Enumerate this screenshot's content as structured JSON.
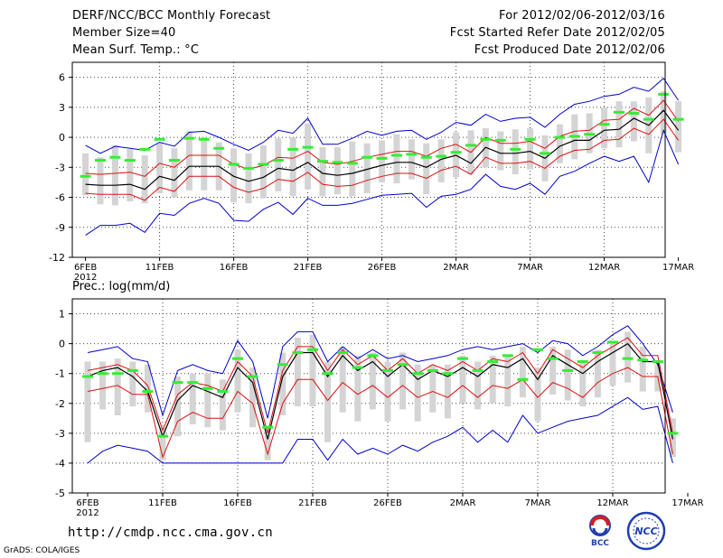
{
  "header": {
    "title": "DERF/NCC/BCC Monthly Forecast",
    "member_size": "Member Size=40",
    "variable": "Mean Surf. Temp.: °C",
    "forecast_period": "For 2012/02/06-2012/03/16",
    "started_date": "Fcst Started Refer Date 2012/02/05",
    "produced_date": "Fcst Produced Date 2012/02/06"
  },
  "footer": {
    "url": "http://cmdp.ncc.cma.gov.cn",
    "credit": "GrADS: COLA/IGES",
    "logo_bcc": "BCC",
    "logo_ncc": "NCC"
  },
  "colors": {
    "mean": "#000000",
    "sd_band": "#dd1111",
    "envelope": "#0000cc",
    "member_range": "#d4d4d4",
    "climatology": "#33ee33"
  },
  "chart_data": [
    {
      "type": "line",
      "title": "Mean Surf. Temp.: °C",
      "xlabel": "",
      "ylabel": "°C",
      "ylim": [
        -12,
        7.5
      ],
      "yticks": [
        6,
        3,
        0,
        -3,
        -6,
        -9,
        -12
      ],
      "x_tick_labels": [
        "6FEB",
        "11FEB",
        "16FEB",
        "21FEB",
        "26FEB",
        "2MAR",
        "7MAR",
        "12MAR",
        "17MAR"
      ],
      "x_tick_days": [
        0,
        5,
        10,
        15,
        20,
        25,
        30,
        35,
        40
      ],
      "year_label": "2012",
      "grid": true,
      "series": [
        {
          "name": "ensemble mean",
          "values": [
            -4.7,
            -4.8,
            -4.8,
            -4.7,
            -5.2,
            -3.9,
            -4.3,
            -2.9,
            -2.9,
            -2.9,
            -3.9,
            -4.4,
            -4.0,
            -3.1,
            -3.3,
            -2.5,
            -3.6,
            -3.8,
            -3.6,
            -3.2,
            -2.8,
            -2.5,
            -2.5,
            -3.0,
            -2.2,
            -1.8,
            -2.6,
            -1.0,
            -1.6,
            -1.6,
            -1.4,
            -2.1,
            -0.9,
            -0.3,
            -0.3,
            0.7,
            0.8,
            1.9,
            1.2,
            2.7,
            0.7
          ]
        },
        {
          "name": "mean + sd",
          "values": [
            -3.6,
            -3.7,
            -3.6,
            -3.5,
            -3.9,
            -2.6,
            -3.0,
            -1.8,
            -1.8,
            -1.8,
            -2.7,
            -3.2,
            -2.8,
            -2.0,
            -2.1,
            -1.4,
            -2.5,
            -2.7,
            -2.4,
            -2.0,
            -1.7,
            -1.4,
            -1.4,
            -1.9,
            -1.1,
            -0.7,
            -1.5,
            0.0,
            -0.6,
            -0.6,
            -0.4,
            -1.1,
            0.1,
            0.6,
            0.7,
            1.7,
            1.8,
            2.9,
            2.2,
            3.7,
            1.6
          ]
        },
        {
          "name": "mean - sd",
          "values": [
            -5.6,
            -5.7,
            -5.7,
            -5.7,
            -6.3,
            -5.0,
            -5.4,
            -3.9,
            -3.9,
            -3.9,
            -5.0,
            -5.5,
            -5.1,
            -4.2,
            -4.4,
            -3.5,
            -4.7,
            -4.9,
            -4.8,
            -4.3,
            -3.9,
            -3.6,
            -3.6,
            -4.1,
            -3.3,
            -2.9,
            -3.7,
            -2.0,
            -2.6,
            -2.6,
            -2.4,
            -3.1,
            -1.9,
            -1.3,
            -1.2,
            -0.3,
            -0.2,
            0.9,
            0.3,
            1.8,
            -0.3
          ]
        },
        {
          "name": "ensemble max",
          "values": [
            -0.8,
            -1.6,
            -0.9,
            -1.1,
            -1.3,
            -0.5,
            -0.9,
            0.5,
            0.6,
            0.0,
            -0.7,
            -1.3,
            -0.5,
            0.7,
            0.4,
            1.9,
            -0.7,
            -0.7,
            -0.1,
            0.6,
            0.2,
            0.6,
            0.7,
            -0.2,
            0.5,
            1.5,
            1.2,
            2.3,
            1.6,
            1.9,
            2.0,
            1.0,
            2.3,
            3.3,
            3.6,
            4.1,
            4.3,
            5.0,
            4.6,
            5.9,
            3.7
          ]
        },
        {
          "name": "ensemble min",
          "values": [
            -9.8,
            -8.8,
            -8.8,
            -8.6,
            -9.5,
            -7.6,
            -7.8,
            -6.6,
            -6.1,
            -6.6,
            -8.3,
            -8.4,
            -7.2,
            -6.5,
            -7.7,
            -6.1,
            -6.8,
            -6.8,
            -6.6,
            -6.2,
            -5.8,
            -5.7,
            -5.6,
            -7.0,
            -5.9,
            -5.7,
            -5.2,
            -3.7,
            -4.9,
            -5.2,
            -4.6,
            -5.7,
            -3.9,
            -3.4,
            -2.6,
            -1.9,
            -2.4,
            -1.9,
            -4.5,
            0.7,
            -2.7
          ]
        },
        {
          "name": "member range top",
          "values": [
            -1.6,
            -2.0,
            -0.8,
            -1.2,
            -1.8,
            -0.6,
            -1.1,
            0.6,
            0.0,
            -0.5,
            -1.1,
            -1.6,
            -0.8,
            -0.1,
            0.0,
            1.4,
            -1.0,
            -1.0,
            -0.4,
            -0.6,
            -0.3,
            0.3,
            -0.2,
            -0.6,
            -0.2,
            0.5,
            0.7,
            0.9,
            0.6,
            0.8,
            0.9,
            0.2,
            1.3,
            2.3,
            2.4,
            3.0,
            3.6,
            3.6,
            4.0,
            4.6,
            3.6
          ]
        },
        {
          "name": "member range bottom",
          "values": [
            -5.8,
            -6.7,
            -6.8,
            -6.4,
            -6.6,
            -5.6,
            -6.0,
            -5.3,
            -5.3,
            -5.3,
            -6.5,
            -6.6,
            -6.1,
            -5.4,
            -5.9,
            -5.2,
            -5.9,
            -5.7,
            -5.9,
            -5.6,
            -4.5,
            -4.6,
            -4.2,
            -5.7,
            -4.5,
            -4.0,
            -3.7,
            -3.0,
            -3.3,
            -3.7,
            -3.2,
            -4.4,
            -2.6,
            -2.2,
            -1.6,
            -1.1,
            -1.0,
            -0.4,
            -1.6,
            0.3,
            -1.5
          ]
        },
        {
          "name": "climatology",
          "values": [
            -3.9,
            -2.3,
            -2.0,
            -2.3,
            -1.2,
            -0.2,
            -2.3,
            -0.1,
            -0.2,
            -1.1,
            -2.7,
            -3.1,
            -2.7,
            -2.3,
            -1.2,
            -1.0,
            -2.4,
            -2.5,
            -2.6,
            -2.0,
            -2.1,
            -1.8,
            -1.7,
            -2.0,
            -1.9,
            -1.5,
            -0.8,
            -0.2,
            -0.3,
            -1.2,
            -0.2,
            -1.6,
            0.0,
            0.1,
            0.3,
            1.3,
            2.5,
            2.4,
            1.8,
            4.3,
            1.8
          ]
        }
      ]
    },
    {
      "type": "line",
      "title": "Prec.: log(mm/d)",
      "xlabel": "",
      "ylabel": "log(mm/d)",
      "ylim": [
        -5,
        1.5
      ],
      "yticks": [
        1,
        0,
        -1,
        -2,
        -3,
        -4,
        -5
      ],
      "x_tick_labels": [
        "6FEB",
        "11FEB",
        "16FEB",
        "21FEB",
        "26FEB",
        "2MAR",
        "7MAR",
        "12MAR",
        "17MAR"
      ],
      "x_tick_days": [
        0,
        5,
        10,
        15,
        20,
        25,
        30,
        35,
        40
      ],
      "year_label": "2012",
      "grid": true,
      "series": [
        {
          "name": "ensemble mean",
          "values": [
            -1.1,
            -0.9,
            -0.8,
            -1.1,
            -1.6,
            -3.1,
            -1.9,
            -1.4,
            -1.6,
            -1.8,
            -0.8,
            -1.3,
            -3.2,
            -1.1,
            -0.3,
            -0.3,
            -1.1,
            -0.4,
            -0.9,
            -0.6,
            -1.1,
            -0.7,
            -1.2,
            -0.9,
            -1.1,
            -0.8,
            -1.1,
            -0.7,
            -0.8,
            -0.5,
            -1.2,
            -0.4,
            -0.7,
            -1.0,
            -0.6,
            -0.3,
            0.0,
            -0.6,
            -0.6,
            -3.2
          ]
        },
        {
          "name": "mean + sd",
          "values": [
            -0.9,
            -0.8,
            -0.7,
            -0.9,
            -1.4,
            -2.9,
            -1.7,
            -1.3,
            -1.4,
            -1.6,
            -0.6,
            -1.1,
            -3.0,
            -0.9,
            -0.1,
            -0.1,
            -0.9,
            -0.2,
            -0.7,
            -0.4,
            -0.9,
            -0.5,
            -1.0,
            -0.7,
            -0.9,
            -0.6,
            -0.9,
            -0.5,
            -0.6,
            -0.3,
            -1.0,
            -0.2,
            -0.5,
            -0.8,
            -0.4,
            -0.1,
            0.2,
            -0.4,
            -0.4,
            -3.0
          ]
        },
        {
          "name": "mean - sd",
          "values": [
            -1.6,
            -1.5,
            -1.4,
            -1.7,
            -1.7,
            -3.8,
            -2.6,
            -2.3,
            -2.5,
            -2.5,
            -1.6,
            -2.0,
            -3.7,
            -2.0,
            -1.2,
            -1.2,
            -1.9,
            -1.3,
            -1.7,
            -1.4,
            -1.8,
            -1.4,
            -1.8,
            -1.6,
            -1.8,
            -1.4,
            -1.8,
            -1.4,
            -1.5,
            -1.2,
            -1.8,
            -1.3,
            -1.5,
            -1.8,
            -1.3,
            -1.0,
            -0.8,
            -1.1,
            -1.1,
            -3.7
          ]
        },
        {
          "name": "ensemble max",
          "values": [
            -0.3,
            -0.2,
            -0.1,
            -0.5,
            -0.6,
            -2.4,
            -0.9,
            -0.7,
            -0.9,
            -1.0,
            0.1,
            -0.6,
            -2.5,
            -0.1,
            0.4,
            0.4,
            -0.6,
            -0.1,
            -0.5,
            -0.2,
            -0.5,
            -0.4,
            -0.6,
            -0.5,
            -0.4,
            -0.2,
            -0.1,
            -0.2,
            -0.1,
            0.0,
            -0.3,
            0.1,
            0.0,
            -0.4,
            -0.1,
            0.3,
            0.6,
            0.0,
            -0.7,
            -2.3
          ]
        },
        {
          "name": "ensemble min",
          "values": [
            -4.0,
            -3.6,
            -3.4,
            -3.5,
            -3.6,
            -4.0,
            -4.0,
            -4.0,
            -4.0,
            -4.0,
            -4.0,
            -4.0,
            -4.0,
            -4.0,
            -3.2,
            -3.2,
            -3.9,
            -3.2,
            -3.7,
            -3.5,
            -3.7,
            -3.4,
            -3.6,
            -3.3,
            -3.1,
            -2.8,
            -3.3,
            -2.9,
            -3.3,
            -2.4,
            -3.0,
            -2.8,
            -2.6,
            -2.5,
            -2.4,
            -2.1,
            -1.8,
            -2.2,
            -2.1,
            -4.0
          ]
        },
        {
          "name": "member range top",
          "values": [
            -0.6,
            -0.6,
            -0.5,
            -0.6,
            -0.7,
            -2.8,
            -1.1,
            -1.0,
            -1.0,
            -1.2,
            -0.2,
            -0.8,
            -2.8,
            -0.3,
            0.2,
            0.3,
            -0.6,
            -0.1,
            -0.4,
            -0.3,
            -0.6,
            -0.3,
            -0.7,
            -0.7,
            -0.7,
            -0.4,
            -0.6,
            -0.4,
            -0.4,
            -0.1,
            -0.8,
            -0.1,
            -0.2,
            -0.6,
            -0.2,
            0.1,
            0.4,
            -0.1,
            -0.7,
            -2.5
          ]
        },
        {
          "name": "member range bottom",
          "values": [
            -3.3,
            -2.2,
            -2.4,
            -2.1,
            -2.3,
            -3.9,
            -3.1,
            -2.7,
            -2.8,
            -2.9,
            -2.3,
            -2.8,
            -3.9,
            -2.4,
            -2.1,
            -2.1,
            -3.3,
            -2.3,
            -2.6,
            -2.2,
            -2.6,
            -2.2,
            -2.6,
            -2.3,
            -2.5,
            -2.0,
            -2.2,
            -2.0,
            -2.1,
            -1.8,
            -2.6,
            -1.7,
            -1.9,
            -2.1,
            -1.8,
            -1.4,
            -1.3,
            -1.6,
            -1.6,
            -3.8
          ]
        },
        {
          "name": "climatology",
          "values": [
            -1.1,
            -1.0,
            -1.0,
            -0.9,
            -1.6,
            -3.1,
            -1.3,
            -1.3,
            -1.5,
            -1.6,
            -0.5,
            -1.1,
            -2.8,
            -0.7,
            -0.3,
            -0.2,
            -1.0,
            -0.3,
            -0.8,
            -0.4,
            -0.9,
            -0.7,
            -1.0,
            -0.9,
            -1.0,
            -0.5,
            -0.9,
            -0.6,
            -0.4,
            -1.2,
            -0.2,
            -0.5,
            -0.9,
            -0.6,
            -0.3,
            0.05,
            -0.5,
            -0.55,
            -0.6,
            -3.0
          ]
        }
      ]
    }
  ]
}
